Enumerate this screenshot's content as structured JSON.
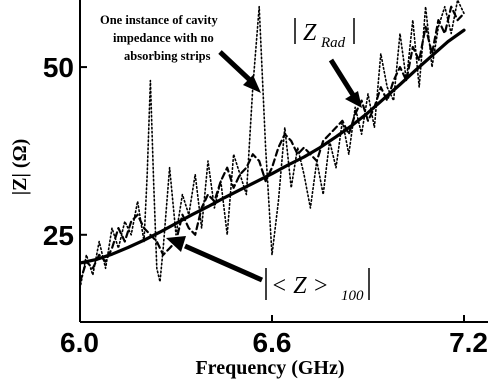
{
  "chart_data": {
    "type": "line",
    "title": "",
    "xlabel": "Frequency (GHz)",
    "ylabel": "|Z| (Ω)",
    "xlim": [
      6.0,
      7.2
    ],
    "ylim": [
      12,
      60
    ],
    "x_ticks": [
      6.0,
      6.6,
      7.2
    ],
    "x_tick_labels": [
      "6.0",
      "6.6",
      "7.2"
    ],
    "y_ticks": [
      25,
      50
    ],
    "y_tick_labels": [
      "25",
      "50"
    ],
    "grid": false,
    "legend": "none",
    "annotations": [
      {
        "id": "no-strips",
        "text_lines": [
          "One instance of cavity",
          "impedance with no",
          "absorbing strips"
        ],
        "points_to": [
          6.57,
          46
        ]
      },
      {
        "id": "z-rad",
        "text": "Z",
        "subscript": "Rad",
        "points_to": [
          6.92,
          43
        ]
      },
      {
        "id": "z-avg",
        "text": "< Z >",
        "subscript": "100",
        "points_to": [
          6.28,
          22
        ]
      }
    ],
    "series": [
      {
        "style": "solid",
        "color": "#000000",
        "x": [
          6.0,
          6.05,
          6.1,
          6.15,
          6.2,
          6.25,
          6.3,
          6.35,
          6.4,
          6.45,
          6.5,
          6.55,
          6.6,
          6.65,
          6.7,
          6.75,
          6.8,
          6.85,
          6.9,
          6.95,
          7.0,
          7.05,
          7.1,
          7.15,
          7.2
        ],
        "y": [
          20.8,
          21.3,
          22.1,
          23.1,
          24.2,
          25.4,
          26.7,
          28.0,
          29.2,
          30.5,
          31.7,
          32.9,
          34.1,
          35.4,
          36.6,
          38.0,
          39.6,
          41.3,
          43.2,
          45.3,
          47.4,
          49.6,
          51.7,
          53.8,
          55.5
        ]
      },
      {
        "style": "dashed",
        "color": "#000000",
        "x": [
          6.0,
          6.02,
          6.04,
          6.06,
          6.08,
          6.1,
          6.12,
          6.14,
          6.16,
          6.18,
          6.2,
          6.22,
          6.24,
          6.26,
          6.28,
          6.3,
          6.32,
          6.34,
          6.36,
          6.38,
          6.4,
          6.42,
          6.44,
          6.46,
          6.48,
          6.5,
          6.52,
          6.54,
          6.56,
          6.58,
          6.6,
          6.62,
          6.64,
          6.66,
          6.68,
          6.7,
          6.72,
          6.74,
          6.76,
          6.78,
          6.8,
          6.82,
          6.84,
          6.86,
          6.88,
          6.9,
          6.92,
          6.94,
          6.96,
          6.98,
          7.0,
          7.02,
          7.04,
          7.06,
          7.08,
          7.1,
          7.12,
          7.14,
          7.16,
          7.18,
          7.2
        ],
        "y": [
          18,
          21,
          20,
          22,
          21,
          23,
          26,
          24,
          27,
          28,
          26,
          25,
          24,
          22,
          23,
          24,
          28,
          26,
          25,
          29,
          31,
          30,
          33,
          35,
          32,
          34,
          35,
          37,
          36,
          33,
          35,
          38,
          40,
          39,
          37,
          38,
          37,
          36,
          39,
          40,
          41,
          42,
          40,
          43,
          45,
          42,
          44,
          47,
          45,
          48,
          50,
          48,
          53,
          51,
          56,
          52,
          57,
          55,
          59,
          57,
          58
        ]
      },
      {
        "style": "dotted",
        "color": "#000000",
        "x": [
          6.0,
          6.02,
          6.04,
          6.06,
          6.08,
          6.1,
          6.12,
          6.14,
          6.16,
          6.18,
          6.2,
          6.21,
          6.22,
          6.23,
          6.24,
          6.25,
          6.26,
          6.28,
          6.3,
          6.32,
          6.34,
          6.36,
          6.38,
          6.4,
          6.42,
          6.44,
          6.46,
          6.48,
          6.5,
          6.52,
          6.54,
          6.56,
          6.58,
          6.6,
          6.62,
          6.64,
          6.66,
          6.68,
          6.7,
          6.72,
          6.74,
          6.76,
          6.78,
          6.8,
          6.82,
          6.84,
          6.86,
          6.88,
          6.9,
          6.92,
          6.94,
          6.96,
          6.98,
          7.0,
          7.02,
          7.04,
          7.06,
          7.08,
          7.1,
          7.12,
          7.14,
          7.16,
          7.18,
          7.2
        ],
        "y": [
          17,
          22,
          19,
          24,
          20,
          26,
          23,
          27,
          25,
          30,
          24,
          34,
          48,
          33,
          20,
          18,
          23,
          35,
          25,
          31,
          28,
          34,
          26,
          36,
          29,
          33,
          25,
          37,
          34,
          31,
          47,
          59,
          38,
          22,
          30,
          41,
          32,
          38,
          34,
          29,
          36,
          31,
          39,
          35,
          42,
          37,
          44,
          40,
          46,
          41,
          52,
          47,
          45,
          55,
          48,
          57,
          47,
          59,
          50,
          56,
          59,
          55,
          60,
          58
        ]
      }
    ]
  }
}
